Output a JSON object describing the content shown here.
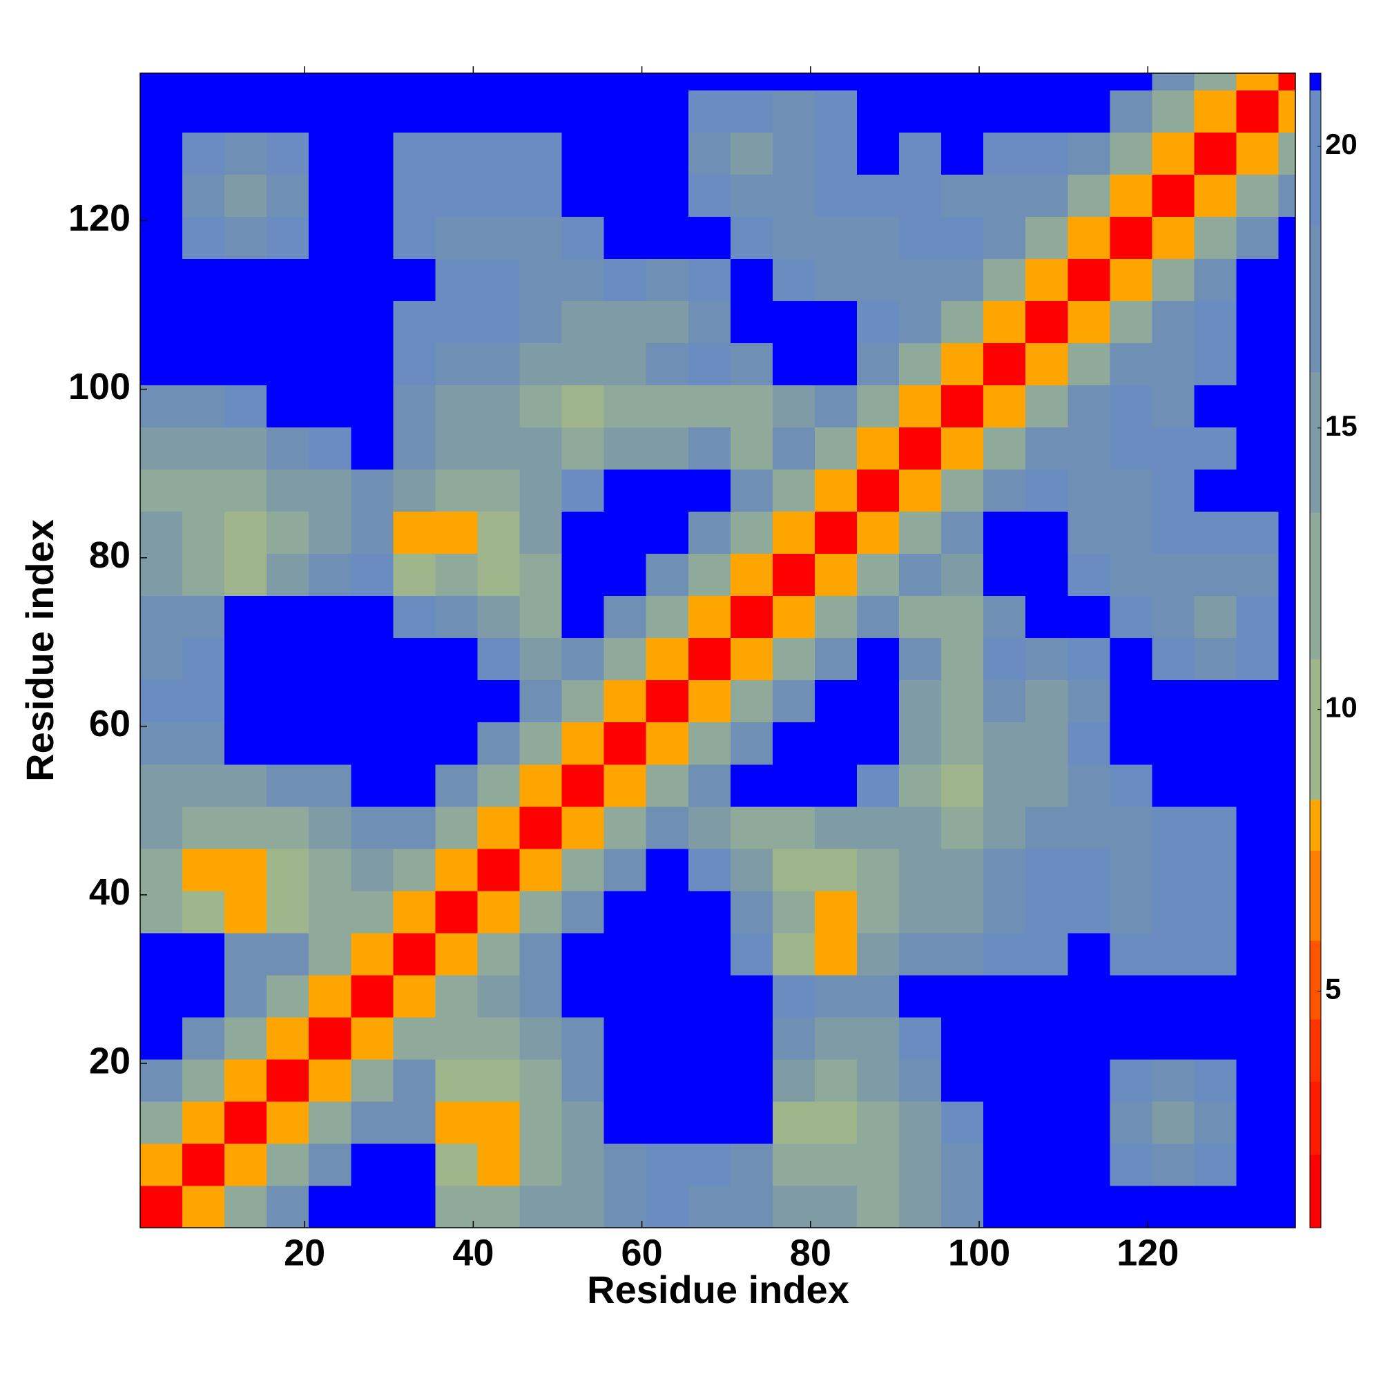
{
  "chart_data": {
    "type": "heatmap",
    "xlabel": "Residue index",
    "ylabel": "Residue index",
    "xlim": [
      0.5,
      137.5
    ],
    "ylim": [
      0.5,
      137.5
    ],
    "xticks": [
      20,
      40,
      60,
      80,
      100,
      120
    ],
    "yticks": [
      20,
      40,
      60,
      80,
      100,
      120
    ],
    "x_edges": [
      0.5,
      5.5,
      10.5,
      15.5,
      20.5,
      25.5,
      30.5,
      35.5,
      40.5,
      45.5,
      50.5,
      55.5,
      60.5,
      65.5,
      70.5,
      75.5,
      80.5,
      85.5,
      90.5,
      95.5,
      100.5,
      105.5,
      110.5,
      115.5,
      120.5,
      125.5,
      130.5,
      135.5,
      137.5
    ],
    "y_edges": [
      0.5,
      5.5,
      10.5,
      15.5,
      20.5,
      25.5,
      30.5,
      35.5,
      40.5,
      45.5,
      50.5,
      55.5,
      60.5,
      65.5,
      70.5,
      75.5,
      80.5,
      85.5,
      90.5,
      95.5,
      100.5,
      105.5,
      110.5,
      115.5,
      120.5,
      125.5,
      130.5,
      135.5,
      137.5
    ],
    "values": [
      [
        1.5,
        8,
        12.5,
        17.5,
        21.2,
        21.2,
        21.2,
        12.5,
        12.5,
        15,
        15,
        17.5,
        19.5,
        17.5,
        17.5,
        15,
        15,
        12.5,
        15,
        17.5,
        21.2,
        21.2,
        21.2,
        21.2,
        21.2,
        21.2,
        21.2,
        21.2
      ],
      [
        8,
        1.5,
        8,
        12.5,
        17.5,
        21.2,
        21.2,
        10,
        8,
        12.5,
        15,
        17.5,
        19.5,
        19.5,
        17.5,
        12.5,
        12.5,
        12.5,
        15,
        17.5,
        21.2,
        21.2,
        21.2,
        19.5,
        17.5,
        19.5,
        21.2,
        21.2
      ],
      [
        12.5,
        8,
        1.5,
        8,
        12.5,
        17.5,
        17.5,
        8,
        8,
        12.5,
        15,
        21.2,
        21.2,
        21.2,
        21.2,
        10,
        10,
        12.5,
        15,
        19.5,
        21.2,
        21.2,
        21.2,
        17.5,
        15,
        17.5,
        21.2,
        21.2
      ],
      [
        17.5,
        12.5,
        8,
        1.5,
        8,
        12.5,
        17.5,
        10,
        10,
        12.5,
        17.5,
        21.2,
        21.2,
        21.2,
        21.2,
        15,
        12.5,
        15,
        17.5,
        21.2,
        21.2,
        21.2,
        21.2,
        19.5,
        17.5,
        19.5,
        21.2,
        21.2
      ],
      [
        21.2,
        17.5,
        12.5,
        8,
        1.5,
        8,
        12.5,
        12.5,
        12.5,
        15,
        17.5,
        21.2,
        21.2,
        21.2,
        21.2,
        17.5,
        15,
        15,
        19.5,
        21.2,
        21.2,
        21.2,
        21.2,
        21.2,
        21.2,
        21.2,
        21.2,
        21.2
      ],
      [
        21.2,
        21.2,
        17.5,
        12.5,
        8,
        1.5,
        8,
        12.5,
        15,
        17.5,
        21.2,
        21.2,
        21.2,
        21.2,
        21.2,
        19.5,
        17.5,
        17.5,
        21.2,
        21.2,
        21.2,
        21.2,
        21.2,
        21.2,
        21.2,
        21.2,
        21.2,
        21.2
      ],
      [
        21.2,
        21.2,
        17.5,
        17.5,
        12.5,
        8,
        1.5,
        8,
        12.5,
        17.5,
        21.2,
        21.2,
        21.2,
        21.2,
        19.5,
        10,
        8,
        15,
        17.5,
        17.5,
        19.5,
        19.5,
        21.2,
        19.5,
        19.5,
        19.5,
        21.2,
        21.2
      ],
      [
        12.5,
        10,
        8,
        10,
        12.5,
        12.5,
        8,
        1.5,
        8,
        12.5,
        17.5,
        21.2,
        21.2,
        21.2,
        17.5,
        12.5,
        8,
        12.5,
        15,
        15,
        17.5,
        19.5,
        19.5,
        17.5,
        19.5,
        19.5,
        21.2,
        21.2
      ],
      [
        12.5,
        8,
        8,
        10,
        12.5,
        15,
        12.5,
        8,
        1.5,
        8,
        12.5,
        17.5,
        21.2,
        19.5,
        15,
        10,
        10,
        12.5,
        15,
        15,
        17.5,
        19.5,
        19.5,
        17.5,
        19.5,
        19.5,
        21.2,
        21.2
      ],
      [
        15,
        12.5,
        12.5,
        12.5,
        15,
        17.5,
        17.5,
        12.5,
        8,
        1.5,
        8,
        12.5,
        17.5,
        15,
        12.5,
        12.5,
        15,
        15,
        15,
        12.5,
        15,
        17.5,
        17.5,
        17.5,
        19.5,
        19.5,
        21.2,
        21.2
      ],
      [
        15,
        15,
        15,
        17.5,
        17.5,
        21.2,
        21.2,
        17.5,
        12.5,
        8,
        1.5,
        8,
        12.5,
        17.5,
        21.2,
        21.2,
        21.2,
        19.5,
        12.5,
        10,
        15,
        15,
        17.5,
        19.5,
        21.2,
        21.2,
        21.2,
        21.2
      ],
      [
        17.5,
        17.5,
        21.2,
        21.2,
        21.2,
        21.2,
        21.2,
        21.2,
        17.5,
        12.5,
        8,
        1.5,
        8,
        12.5,
        17.5,
        21.2,
        21.2,
        21.2,
        15,
        12.5,
        15,
        15,
        19.5,
        21.2,
        21.2,
        21.2,
        21.2,
        21.2
      ],
      [
        19.5,
        19.5,
        21.2,
        21.2,
        21.2,
        21.2,
        21.2,
        21.2,
        21.2,
        17.5,
        12.5,
        8,
        1.5,
        8,
        12.5,
        17.5,
        21.2,
        21.2,
        15,
        12.5,
        17.5,
        15,
        17.5,
        21.2,
        21.2,
        21.2,
        21.2,
        21.2
      ],
      [
        17.5,
        19.5,
        21.2,
        21.2,
        21.2,
        21.2,
        21.2,
        21.2,
        19.5,
        15,
        17.5,
        12.5,
        8,
        1.5,
        8,
        12.5,
        17.5,
        21.2,
        17.5,
        12.5,
        19.5,
        17.5,
        19.5,
        21.2,
        19.5,
        17.5,
        19.5,
        21.2
      ],
      [
        17.5,
        17.5,
        21.2,
        21.2,
        21.2,
        21.2,
        19.5,
        17.5,
        15,
        12.5,
        21.2,
        17.5,
        12.5,
        8,
        1.5,
        8,
        12.5,
        17.5,
        12.5,
        12.5,
        17.5,
        21.2,
        21.2,
        19.5,
        17.5,
        15,
        19.5,
        21.2
      ],
      [
        15,
        12.5,
        10,
        15,
        17.5,
        19.5,
        10,
        12.5,
        10,
        12.5,
        21.2,
        21.2,
        17.5,
        12.5,
        8,
        1.5,
        8,
        12.5,
        17.5,
        15,
        21.2,
        21.2,
        19.5,
        17.5,
        17.5,
        17.5,
        17.5,
        21.2
      ],
      [
        15,
        12.5,
        10,
        12.5,
        15,
        17.5,
        8,
        8,
        10,
        15,
        21.2,
        21.2,
        21.2,
        17.5,
        12.5,
        8,
        1.5,
        8,
        12.5,
        17.5,
        21.2,
        21.2,
        17.5,
        17.5,
        19.5,
        19.5,
        19.5,
        21.2
      ],
      [
        12.5,
        12.5,
        12.5,
        15,
        15,
        17.5,
        15,
        12.5,
        12.5,
        15,
        19.5,
        21.2,
        21.2,
        21.2,
        17.5,
        12.5,
        8,
        1.5,
        8,
        12.5,
        17.5,
        19.5,
        17.5,
        17.5,
        19.5,
        21.2,
        21.2,
        21.2
      ],
      [
        15,
        15,
        15,
        17.5,
        19.5,
        21.2,
        17.5,
        15,
        15,
        15,
        12.5,
        15,
        15,
        17.5,
        12.5,
        17.5,
        12.5,
        8,
        1.5,
        8,
        12.5,
        17.5,
        17.5,
        19.5,
        19.5,
        19.5,
        21.2,
        21.2
      ],
      [
        17.5,
        17.5,
        19.5,
        21.2,
        21.2,
        21.2,
        17.5,
        15,
        15,
        12.5,
        10,
        12.5,
        12.5,
        12.5,
        12.5,
        15,
        17.5,
        12.5,
        8,
        1.5,
        8,
        12.5,
        17.5,
        19.5,
        17.5,
        21.2,
        21.2,
        21.2
      ],
      [
        21.2,
        21.2,
        21.2,
        21.2,
        21.2,
        21.2,
        19.5,
        17.5,
        17.5,
        15,
        15,
        15,
        17.5,
        19.5,
        17.5,
        21.2,
        21.2,
        17.5,
        12.5,
        8,
        1.5,
        8,
        12.5,
        17.5,
        17.5,
        19.5,
        21.2,
        21.2
      ],
      [
        21.2,
        21.2,
        21.2,
        21.2,
        21.2,
        21.2,
        19.5,
        19.5,
        19.5,
        17.5,
        15,
        15,
        15,
        17.5,
        21.2,
        21.2,
        21.2,
        19.5,
        17.5,
        12.5,
        8,
        1.5,
        8,
        12.5,
        17.5,
        19.5,
        21.2,
        21.2
      ],
      [
        21.2,
        21.2,
        21.2,
        21.2,
        21.2,
        21.2,
        21.2,
        19.5,
        19.5,
        17.5,
        17.5,
        19.5,
        17.5,
        19.5,
        21.2,
        19.5,
        17.5,
        17.5,
        17.5,
        17.5,
        12.5,
        8,
        1.5,
        8,
        12.5,
        17.5,
        21.2,
        21.2
      ],
      [
        21.2,
        19.5,
        17.5,
        19.5,
        21.2,
        21.2,
        19.5,
        17.5,
        17.5,
        17.5,
        19.5,
        21.2,
        21.2,
        21.2,
        19.5,
        17.5,
        17.5,
        17.5,
        19.5,
        19.5,
        17.5,
        12.5,
        8,
        1.5,
        8,
        12.5,
        17.5,
        21.2
      ],
      [
        21.2,
        17.5,
        15,
        17.5,
        21.2,
        21.2,
        19.5,
        19.5,
        19.5,
        19.5,
        21.2,
        21.2,
        21.2,
        19.5,
        17.5,
        17.5,
        19.5,
        19.5,
        19.5,
        17.5,
        17.5,
        17.5,
        12.5,
        8,
        1.5,
        8,
        12.5,
        17.5
      ],
      [
        21.2,
        19.5,
        17.5,
        19.5,
        21.2,
        21.2,
        19.5,
        19.5,
        19.5,
        19.5,
        21.2,
        21.2,
        21.2,
        17.5,
        15,
        17.5,
        19.5,
        21.2,
        19.5,
        21.2,
        19.5,
        19.5,
        17.5,
        12.5,
        8,
        1.5,
        8,
        12.5
      ],
      [
        21.2,
        21.2,
        21.2,
        21.2,
        21.2,
        21.2,
        21.2,
        21.2,
        21.2,
        21.2,
        21.2,
        21.2,
        21.2,
        19.5,
        19.5,
        17.5,
        19.5,
        21.2,
        21.2,
        21.2,
        21.2,
        21.2,
        21.2,
        17.5,
        12.5,
        8,
        1.5,
        8
      ],
      [
        21.2,
        21.2,
        21.2,
        21.2,
        21.2,
        21.2,
        21.2,
        21.2,
        21.2,
        21.2,
        21.2,
        21.2,
        21.2,
        21.2,
        21.2,
        21.2,
        21.2,
        21.2,
        21.2,
        21.2,
        21.2,
        21.2,
        21.2,
        21.2,
        17.5,
        12.5,
        8,
        1.5
      ]
    ],
    "colorbar": {
      "levels": [
        0.8,
        2.1,
        3.4,
        4.5,
        5.9,
        7.5,
        8.4,
        10.9,
        13.5,
        16,
        18.6,
        21,
        21.3
      ],
      "colors": [
        "#ff0000",
        "#ff1a00",
        "#ff3300",
        "#ff5500",
        "#ff8000",
        "#ffa500",
        "#9fb58c",
        "#8fa99a",
        "#7f9ca6",
        "#6f8fb4",
        "#6a8cc0",
        "#0000ff"
      ],
      "ticks": [
        5,
        10,
        15,
        20
      ]
    }
  }
}
